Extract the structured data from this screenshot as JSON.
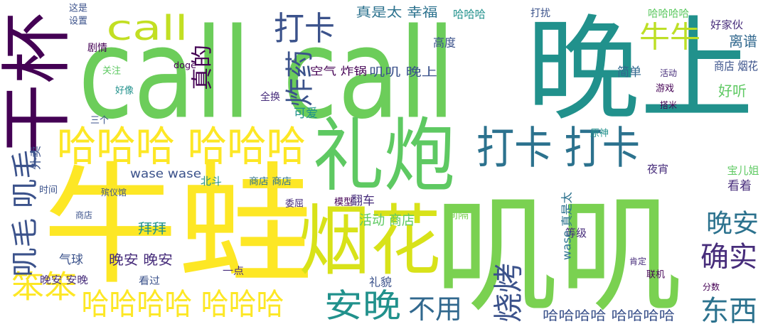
{
  "words": [
    "call call",
    "晚上",
    "牛蛙",
    "叽叽",
    "礼炮",
    "烟花",
    "干杯",
    "哈哈哈 哈哈哈",
    "打卡 打卡",
    "打卡",
    "call",
    "牛牛",
    "炸药",
    "真的",
    "笨笨",
    "哈哈哈哈 哈哈哈",
    "安晚",
    "不用",
    "烧烤",
    "东西",
    "确实",
    "晚安",
    "叽毛 叽毛",
    "外卖",
    "哈哈哈哈 哈哈哈哈",
    "叽叽 晚上",
    "真是太 幸福",
    "高度",
    "哈哈哈",
    "哈哈哈哈",
    "离谱",
    "好家伙",
    "商店 烟花",
    "简单",
    "活动",
    "好听",
    "游戏",
    "搭米",
    "原神",
    "夜宵",
    "宝儿姐",
    "看着",
    "wase wase",
    "北斗",
    "商店 商店",
    "翻车",
    "活动 商店",
    "拜拜",
    "晚安 晚安",
    "气球",
    "晚安 安晚",
    "看过",
    "一点",
    "礼貌",
    "空气 炸锅",
    "可爱",
    "全换",
    "关注",
    "好像",
    "三个",
    "设置",
    "这是",
    "剧情",
    "doge",
    "时间",
    "商店",
    "殡仪馆",
    "模型",
    "委屈",
    "间隔",
    "等级",
    "肯定",
    "联机",
    "分数",
    "wase 真是太",
    "打扰"
  ]
}
